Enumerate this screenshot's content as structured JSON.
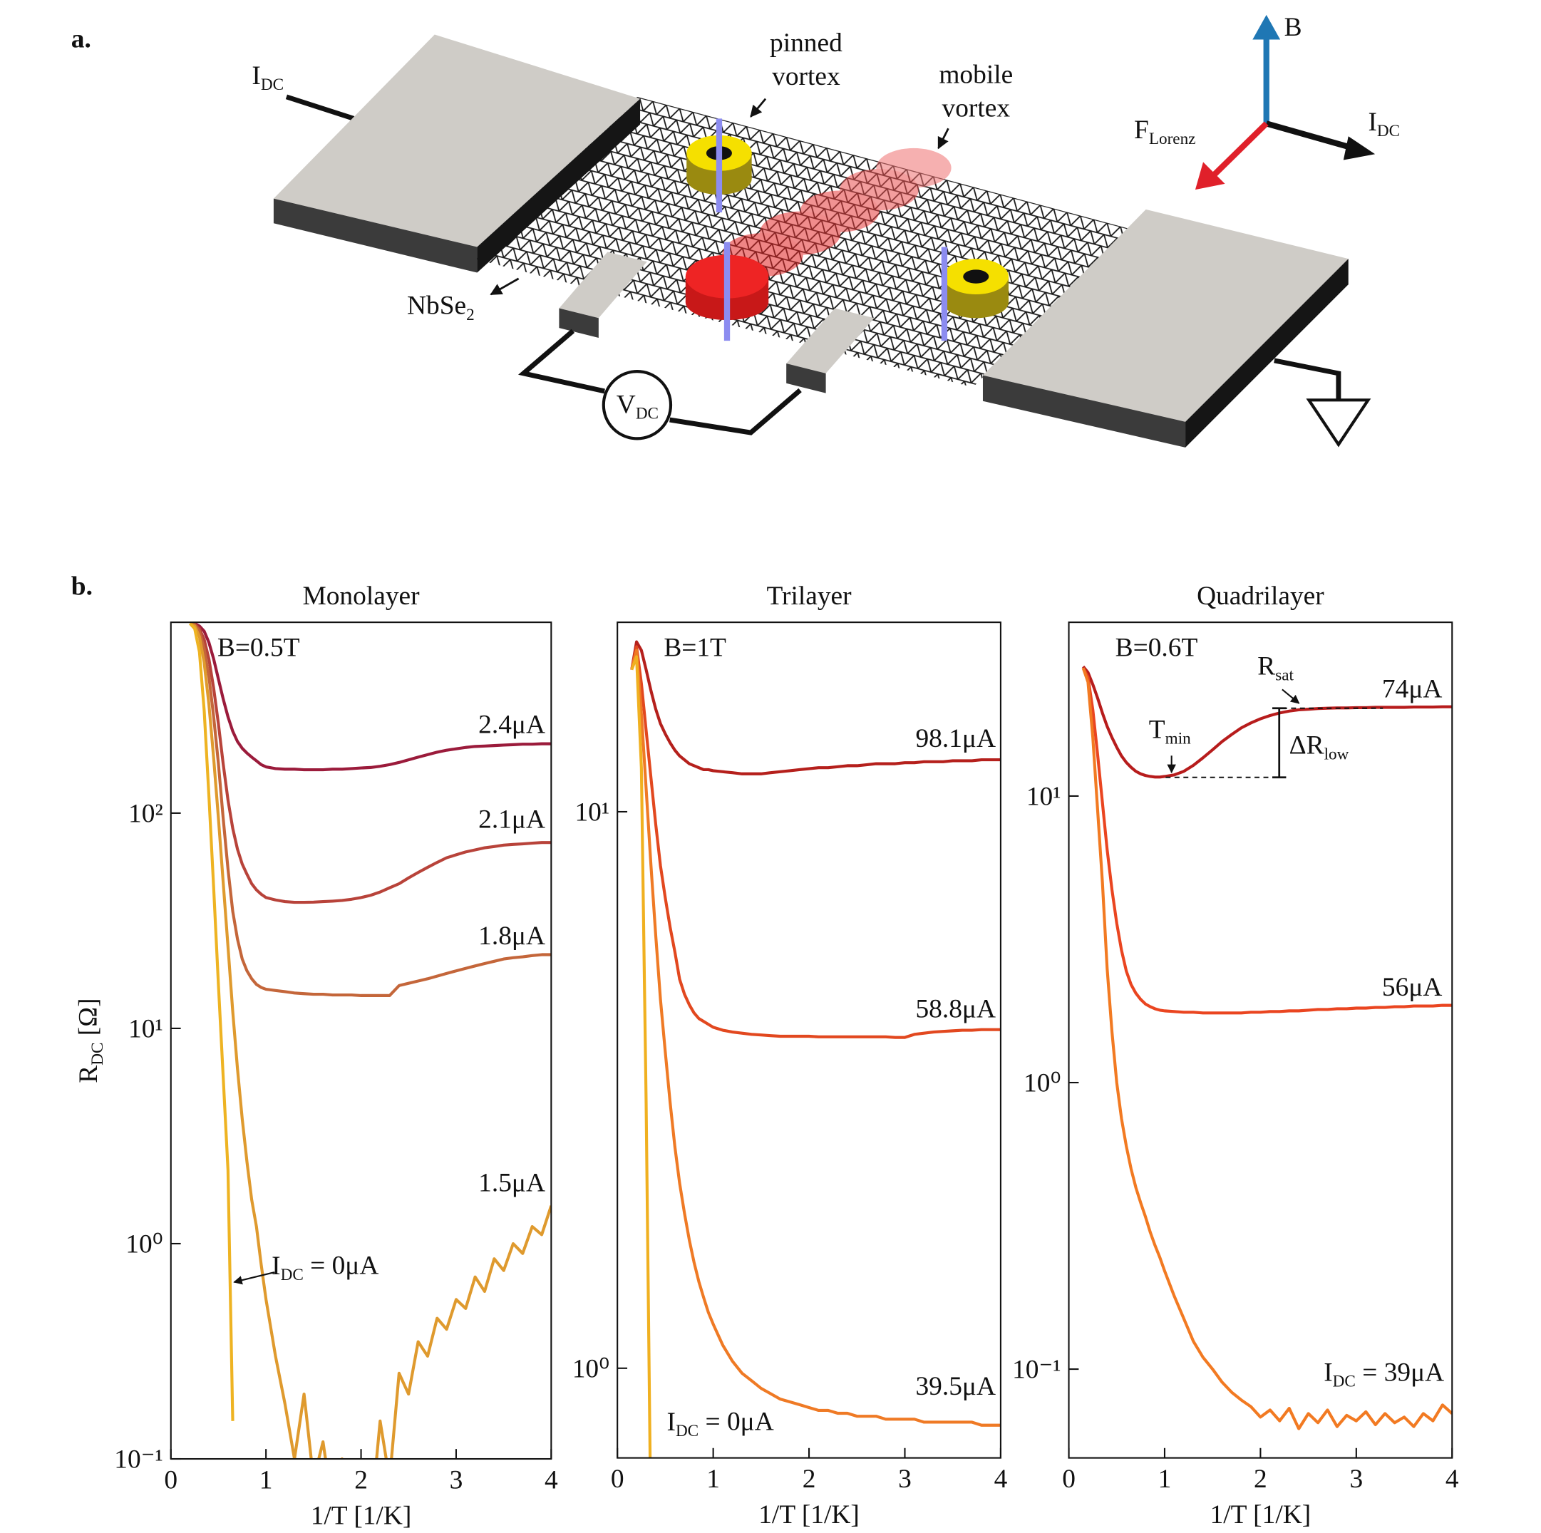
{
  "panel_a": {
    "panel_label": "a.",
    "labels": {
      "current_in": {
        "main": "I",
        "sub": "DC"
      },
      "pinned_vortex": [
        "pinned",
        "vortex"
      ],
      "mobile_vortex": [
        "mobile",
        "vortex"
      ],
      "material": {
        "main": "NbSe",
        "sub": "2"
      },
      "voltmeter": {
        "main": "V",
        "sub": "DC"
      },
      "field": "B",
      "force": {
        "main": "F",
        "sub": "Lorenz"
      },
      "current_axis": {
        "main": "I",
        "sub": "DC"
      }
    }
  },
  "panel_b": {
    "panel_label": "b."
  },
  "chart_data": [
    {
      "type": "line",
      "title": "Monolayer",
      "field_label": "B=0.5T",
      "xlabel": "1/T [1/K]",
      "ylabel": {
        "main": "R",
        "sub": "DC",
        "rest": " [Ω]"
      },
      "log_y": true,
      "grid": false,
      "xlim": [
        0,
        4
      ],
      "ylim": [
        0.1,
        770
      ],
      "xticks": [
        0,
        1,
        2,
        3,
        4
      ],
      "yticks": [
        {
          "value": 0.1,
          "label": "10⁻¹"
        },
        {
          "value": 1,
          "label": "10⁰"
        },
        {
          "value": 10,
          "label": "10¹"
        },
        {
          "value": 100,
          "label": "10²"
        }
      ],
      "x": [
        0.2,
        0.25,
        0.3,
        0.35,
        0.4,
        0.45,
        0.5,
        0.55,
        0.6,
        0.65,
        0.7,
        0.75,
        0.8,
        0.85,
        0.9,
        0.95,
        1,
        1.1,
        1.2,
        1.3,
        1.4,
        1.5,
        1.6,
        1.7,
        1.8,
        1.9,
        2,
        2.1,
        2.2,
        2.3,
        2.4,
        2.5,
        2.6,
        2.7,
        2.8,
        2.9,
        3,
        3.1,
        3.2,
        3.3,
        3.4,
        3.5,
        3.6,
        3.7,
        3.8,
        3.9,
        4
      ],
      "series": [
        {
          "name": "2.4μA",
          "color": "#9b1b3b",
          "values": [
            760,
            760,
            740,
            700,
            620,
            520,
            420,
            340,
            280,
            240,
            215,
            200,
            190,
            182,
            175,
            168,
            164,
            161,
            160,
            160,
            159,
            159,
            159,
            160,
            160,
            161,
            162,
            163,
            165,
            168,
            172,
            177,
            182,
            187,
            192,
            196,
            199,
            202,
            204,
            205,
            206,
            207,
            208,
            209,
            209,
            210,
            210
          ]
        },
        {
          "name": "2.1μA",
          "color": "#b8433a",
          "values": [
            760,
            755,
            720,
            640,
            520,
            380,
            260,
            170,
            115,
            85,
            68,
            58,
            52,
            47,
            44,
            42,
            40.5,
            39.5,
            38.8,
            38.5,
            38.5,
            38.6,
            38.8,
            39,
            39.3,
            39.8,
            40.5,
            41.5,
            43,
            45,
            47,
            50,
            53,
            56,
            59,
            62,
            64,
            66,
            67.5,
            69,
            70,
            71,
            71.5,
            72,
            72.5,
            73,
            73
          ]
        },
        {
          "name": "1.8μA",
          "color": "#c4663a",
          "values": [
            760,
            750,
            700,
            580,
            430,
            280,
            170,
            95,
            55,
            35,
            26,
            21,
            18.5,
            17,
            16,
            15.5,
            15.2,
            15,
            14.8,
            14.6,
            14.5,
            14.4,
            14.4,
            14.3,
            14.3,
            14.3,
            14.2,
            14.2,
            14.2,
            14.2,
            15.8,
            16.2,
            16.6,
            17,
            17.5,
            18,
            18.5,
            19,
            19.5,
            20,
            20.5,
            21,
            21.3,
            21.5,
            21.8,
            22,
            22
          ]
        },
        {
          "name": "1.5μA",
          "color": "#df9a2e",
          "values": [
            760,
            740,
            660,
            500,
            320,
            180,
            95,
            48,
            24,
            12,
            6.5,
            3.8,
            2.4,
            1.6,
            1.2,
            0.8,
            0.55,
            0.3,
            0.18,
            0.1,
            0.2,
            0.08,
            0.12,
            0.06,
            0.1,
            0.07,
            0.09,
            0.05,
            0.15,
            0.08,
            0.25,
            0.2,
            0.35,
            0.3,
            0.45,
            0.4,
            0.55,
            0.5,
            0.7,
            0.6,
            0.85,
            0.75,
            1.0,
            0.9,
            1.2,
            1.1,
            1.5
          ]
        },
        {
          "name": {
            "main": "I",
            "sub": "DC",
            "rest": " = 0μA"
          },
          "color": "#eeb322",
          "values": [
            760,
            720,
            560,
            300,
            120,
            45,
            16,
            6,
            2.2,
            0.15,
            null,
            null,
            null,
            null,
            null,
            null,
            null,
            null,
            null,
            null,
            null,
            null,
            null,
            null,
            null,
            null,
            null,
            null,
            null,
            null,
            null,
            null,
            null,
            null,
            null,
            null,
            null,
            null,
            null,
            null,
            null,
            null,
            null,
            null,
            null,
            null,
            null
          ]
        }
      ]
    },
    {
      "type": "line",
      "title": "Trilayer",
      "field_label": "B=1T",
      "xlabel": "1/T [1/K]",
      "log_y": true,
      "grid": false,
      "xlim": [
        0,
        4
      ],
      "ylim": [
        0.69,
        21.9
      ],
      "xticks": [
        0,
        1,
        2,
        3,
        4
      ],
      "yticks": [
        {
          "value": 1,
          "label": "10⁰"
        },
        {
          "value": 10,
          "label": "10¹"
        }
      ],
      "x": [
        0.15,
        0.2,
        0.25,
        0.3,
        0.35,
        0.4,
        0.45,
        0.5,
        0.55,
        0.6,
        0.65,
        0.7,
        0.75,
        0.8,
        0.85,
        0.9,
        0.95,
        1,
        1.1,
        1.2,
        1.3,
        1.4,
        1.5,
        1.6,
        1.7,
        1.8,
        1.9,
        2,
        2.1,
        2.2,
        2.3,
        2.4,
        2.5,
        2.6,
        2.7,
        2.8,
        2.9,
        3,
        3.1,
        3.2,
        3.3,
        3.4,
        3.5,
        3.6,
        3.7,
        3.8,
        3.9,
        4
      ],
      "series": [
        {
          "name": "98.1μA",
          "color": "#b5201c",
          "values": [
            18,
            20.2,
            19.5,
            18,
            16.5,
            15.3,
            14.4,
            13.8,
            13.3,
            12.9,
            12.6,
            12.4,
            12.2,
            12.1,
            12,
            11.9,
            11.9,
            11.85,
            11.8,
            11.75,
            11.7,
            11.7,
            11.7,
            11.75,
            11.8,
            11.85,
            11.9,
            11.95,
            12,
            12,
            12.05,
            12.1,
            12.1,
            12.15,
            12.2,
            12.2,
            12.2,
            12.25,
            12.25,
            12.3,
            12.3,
            12.3,
            12.35,
            12.35,
            12.35,
            12.4,
            12.4,
            12.4
          ]
        },
        {
          "name": "58.8μA",
          "color": "#e2481f",
          "values": [
            18,
            19.8,
            17,
            14,
            11.5,
            9.5,
            8,
            7,
            6.2,
            5.6,
            5.0,
            4.7,
            4.5,
            4.35,
            4.25,
            4.2,
            4.15,
            4.1,
            4.05,
            4.02,
            4.0,
            3.98,
            3.97,
            3.96,
            3.95,
            3.95,
            3.95,
            3.95,
            3.94,
            3.94,
            3.94,
            3.94,
            3.94,
            3.94,
            3.94,
            3.94,
            3.93,
            3.93,
            3.98,
            4.0,
            4.02,
            4.03,
            4.04,
            4.05,
            4.05,
            4.06,
            4.06,
            4.06
          ]
        },
        {
          "name": "39.5μA",
          "color": "#ef7a25",
          "values": [
            18,
            19.5,
            15,
            11,
            8,
            6,
            4.6,
            3.7,
            3.0,
            2.5,
            2.15,
            1.9,
            1.7,
            1.55,
            1.43,
            1.34,
            1.26,
            1.2,
            1.1,
            1.03,
            0.98,
            0.95,
            0.92,
            0.9,
            0.88,
            0.87,
            0.86,
            0.85,
            0.84,
            0.84,
            0.83,
            0.83,
            0.82,
            0.82,
            0.82,
            0.81,
            0.81,
            0.81,
            0.81,
            0.8,
            0.8,
            0.8,
            0.8,
            0.8,
            0.8,
            0.79,
            0.79,
            0.79
          ]
        },
        {
          "name": {
            "main": "I",
            "sub": "DC",
            "rest": " = 0μA"
          },
          "color": "#f0b020",
          "values": [
            18,
            19,
            12,
            3,
            0.5,
            null,
            null,
            null,
            null,
            null,
            null,
            null,
            null,
            null,
            null,
            null,
            null,
            null,
            null,
            null,
            null,
            null,
            null,
            null,
            null,
            null,
            null,
            null,
            null,
            null,
            null,
            null,
            null,
            null,
            null,
            null,
            null,
            null,
            null,
            null,
            null,
            null,
            null,
            null,
            null,
            null,
            null,
            null
          ]
        }
      ]
    },
    {
      "type": "line",
      "title": "Quadrilayer",
      "field_label": "B=0.6T",
      "xlabel": "1/T [1/K]",
      "annotations": {
        "r_sat": {
          "main": "R",
          "sub": "sat"
        },
        "t_min": {
          "main": "T",
          "sub": "min"
        },
        "delta_r_low": {
          "main": "ΔR",
          "sub": "low"
        }
      },
      "log_y": true,
      "grid": false,
      "xlim": [
        0,
        4
      ],
      "ylim": [
        0.049,
        40.4
      ],
      "xticks": [
        0,
        1,
        2,
        3,
        4
      ],
      "yticks": [
        {
          "value": 0.1,
          "label": "10⁻¹"
        },
        {
          "value": 1,
          "label": "10⁰"
        },
        {
          "value": 10,
          "label": "10¹"
        }
      ],
      "x": [
        0.15,
        0.2,
        0.25,
        0.3,
        0.35,
        0.4,
        0.45,
        0.5,
        0.55,
        0.6,
        0.65,
        0.7,
        0.75,
        0.8,
        0.85,
        0.9,
        0.95,
        1,
        1.1,
        1.2,
        1.3,
        1.4,
        1.5,
        1.6,
        1.7,
        1.8,
        1.9,
        2,
        2.1,
        2.2,
        2.3,
        2.4,
        2.5,
        2.6,
        2.7,
        2.8,
        2.9,
        3,
        3.1,
        3.2,
        3.3,
        3.4,
        3.5,
        3.6,
        3.7,
        3.8,
        3.9,
        4
      ],
      "series": [
        {
          "name": "74μA",
          "color": "#b71c1c",
          "values": [
            28.3,
            27,
            24.5,
            22,
            19.5,
            17.5,
            16,
            14.8,
            13.8,
            13.1,
            12.6,
            12.2,
            11.95,
            11.8,
            11.7,
            11.65,
            11.65,
            11.7,
            11.85,
            12.2,
            12.8,
            13.6,
            14.5,
            15.5,
            16.4,
            17.3,
            18.0,
            18.6,
            19.1,
            19.5,
            19.8,
            20.0,
            20.1,
            20.2,
            20.25,
            20.3,
            20.3,
            20.35,
            20.35,
            20.4,
            20.4,
            20.4,
            20.4,
            20.45,
            20.45,
            20.45,
            20.5,
            20.5
          ]
        },
        {
          "name": "56μA",
          "color": "#ea4520",
          "values": [
            28,
            26,
            20,
            14,
            9.5,
            6.5,
            4.7,
            3.6,
            2.9,
            2.45,
            2.2,
            2.05,
            1.95,
            1.88,
            1.84,
            1.81,
            1.79,
            1.78,
            1.77,
            1.76,
            1.76,
            1.75,
            1.75,
            1.75,
            1.75,
            1.75,
            1.76,
            1.76,
            1.77,
            1.77,
            1.78,
            1.78,
            1.79,
            1.8,
            1.8,
            1.81,
            1.81,
            1.82,
            1.82,
            1.83,
            1.83,
            1.84,
            1.84,
            1.85,
            1.85,
            1.85,
            1.86,
            1.86
          ]
        },
        {
          "name": {
            "main": "I",
            "sub": "DC",
            "rest": " = 39μA"
          },
          "color": "#f27a22",
          "values": [
            28,
            25,
            16,
            9,
            5,
            2.5,
            1.5,
            1.0,
            0.75,
            0.6,
            0.5,
            0.43,
            0.38,
            0.34,
            0.3,
            0.27,
            0.245,
            0.22,
            0.18,
            0.15,
            0.125,
            0.11,
            0.1,
            0.09,
            0.083,
            0.078,
            0.074,
            0.068,
            0.072,
            0.066,
            0.073,
            0.062,
            0.07,
            0.065,
            0.072,
            0.063,
            0.069,
            0.066,
            0.071,
            0.064,
            0.07,
            0.065,
            0.068,
            0.063,
            0.07,
            0.066,
            0.075,
            0.07
          ]
        }
      ]
    }
  ]
}
